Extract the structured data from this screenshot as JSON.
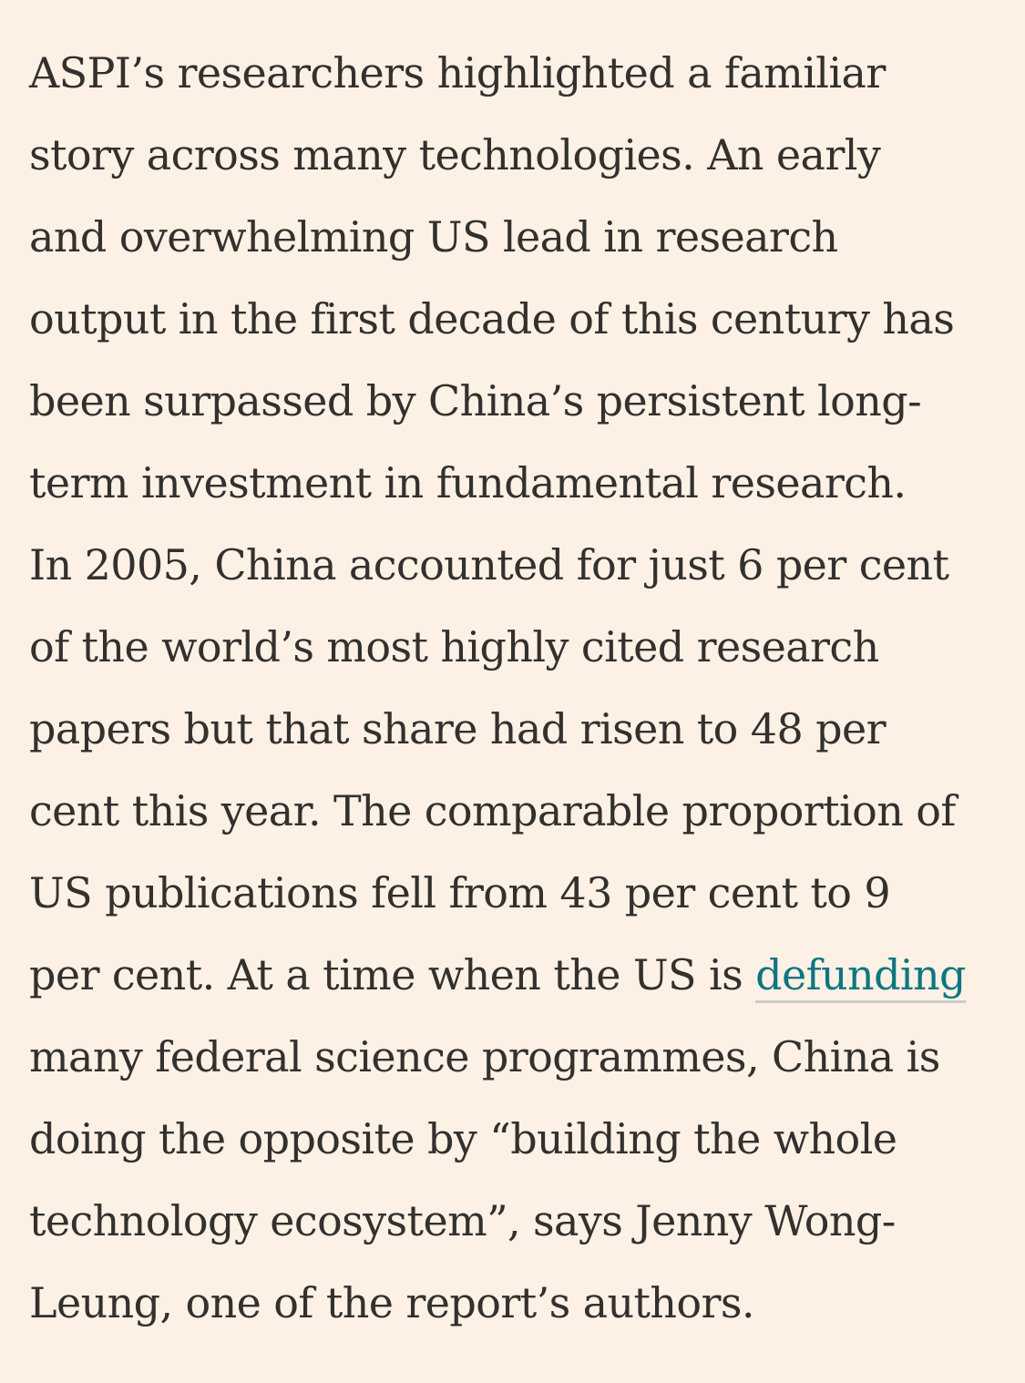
{
  "article": {
    "lines": [
      {
        "text": "ASPI’s researchers highlighted a familiar"
      },
      {
        "text": "story across many technologies. An early"
      },
      {
        "text": "and overwhelming US lead in research"
      },
      {
        "text": "output in the first decade of this century has"
      },
      {
        "text": "been surpassed by China’s persistent long-"
      },
      {
        "text": "term investment in fundamental research."
      },
      {
        "text": "In 2005, China accounted for just 6 per cent"
      },
      {
        "text": "of the world’s most highly cited research"
      },
      {
        "text": "papers but that share had risen to 48 per"
      },
      {
        "text": "cent this year. The comparable proportion of"
      },
      {
        "text": "US publications fell from 43 per cent to 9"
      },
      {
        "before": "per cent. At a time when the US is ",
        "link": "defunding"
      },
      {
        "text": "many federal science programmes, China is"
      },
      {
        "text": "doing the opposite by “building the whole"
      },
      {
        "text": "technology ecosystem”, says Jenny Wong-"
      },
      {
        "text": "Leung, one of the report’s authors."
      }
    ]
  },
  "colors": {
    "background": "#fdf1e6",
    "text": "#33302e",
    "link": "#0d7680"
  }
}
